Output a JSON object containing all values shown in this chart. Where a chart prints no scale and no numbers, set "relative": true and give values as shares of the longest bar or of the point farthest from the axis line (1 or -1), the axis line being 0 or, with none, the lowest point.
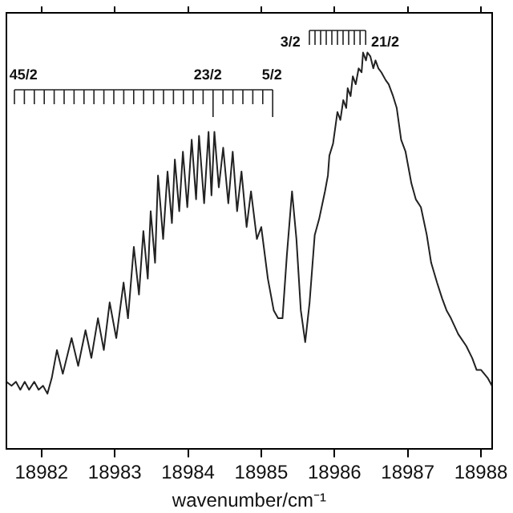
{
  "chart_data": {
    "type": "line",
    "xlabel": "wavenumber/cm⁻¹",
    "relative": true,
    "tick_labels": "x",
    "grid": false,
    "legend": false,
    "marker": "none",
    "line_style": "solid",
    "xlim": [
      18981.52,
      18988.15
    ],
    "xticks": [
      18982,
      18983,
      18984,
      18985,
      18986,
      18987,
      18988
    ],
    "annotations": [
      "45/2",
      "23/2",
      "5/2",
      "3/2",
      "21/2"
    ],
    "series": [
      {
        "color": "#222222",
        "x": [
          18981.52,
          18981.59,
          18981.65,
          18981.71,
          18981.77,
          18981.83,
          18981.9,
          18981.96,
          18982.02,
          18982.08,
          18982.14,
          18982.21,
          18982.29,
          18982.41,
          18982.5,
          18982.6,
          18982.68,
          18982.77,
          18982.85,
          18982.93,
          18983.02,
          18983.12,
          18983.18,
          18983.26,
          18983.33,
          18983.39,
          18983.45,
          18983.49,
          18983.55,
          18983.59,
          18983.66,
          18983.72,
          18983.78,
          18983.82,
          18983.88,
          18983.93,
          18983.99,
          18984.05,
          18984.11,
          18984.15,
          18984.22,
          18984.28,
          18984.32,
          18984.36,
          18984.42,
          18984.48,
          18984.55,
          18984.61,
          18984.67,
          18984.73,
          18984.8,
          18984.86,
          18984.94,
          18985.0,
          18985.09,
          18985.17,
          18985.23,
          18985.29,
          18985.35,
          18985.42,
          18985.48,
          18985.54,
          18985.6,
          18985.66,
          18985.73,
          18985.79,
          18985.87,
          18985.91,
          18985.93,
          18985.98,
          18986.04,
          18986.08,
          18986.12,
          18986.16,
          18986.18,
          18986.22,
          18986.25,
          18986.29,
          18986.33,
          18986.37,
          18986.39,
          18986.43,
          18986.45,
          18986.49,
          18986.53,
          18986.56,
          18986.6,
          18986.64,
          18986.7,
          18986.74,
          18986.8,
          18986.85,
          18986.91,
          18986.97,
          18987.01,
          18987.05,
          18987.11,
          18987.18,
          18987.26,
          18987.32,
          18987.4,
          18987.47,
          18987.53,
          18987.59,
          18987.69,
          18987.8,
          18987.88,
          18987.94,
          18988.0,
          18988.09,
          18988.15
        ],
        "values": [
          0.17,
          0.16,
          0.17,
          0.15,
          0.17,
          0.15,
          0.17,
          0.15,
          0.16,
          0.14,
          0.18,
          0.25,
          0.19,
          0.28,
          0.21,
          0.3,
          0.23,
          0.33,
          0.25,
          0.37,
          0.28,
          0.42,
          0.33,
          0.51,
          0.39,
          0.55,
          0.43,
          0.6,
          0.47,
          0.69,
          0.53,
          0.7,
          0.57,
          0.73,
          0.6,
          0.75,
          0.61,
          0.78,
          0.63,
          0.79,
          0.62,
          0.8,
          0.64,
          0.8,
          0.66,
          0.76,
          0.62,
          0.75,
          0.6,
          0.7,
          0.56,
          0.65,
          0.53,
          0.56,
          0.43,
          0.35,
          0.33,
          0.33,
          0.49,
          0.65,
          0.53,
          0.35,
          0.27,
          0.37,
          0.54,
          0.58,
          0.65,
          0.69,
          0.74,
          0.77,
          0.85,
          0.83,
          0.88,
          0.86,
          0.91,
          0.89,
          0.94,
          0.92,
          0.96,
          0.95,
          1.0,
          0.98,
          1.0,
          0.99,
          0.96,
          0.98,
          0.96,
          0.95,
          0.93,
          0.92,
          0.89,
          0.86,
          0.78,
          0.75,
          0.71,
          0.67,
          0.63,
          0.61,
          0.54,
          0.47,
          0.42,
          0.38,
          0.35,
          0.33,
          0.29,
          0.26,
          0.23,
          0.2,
          0.2,
          0.18,
          0.16
        ]
      }
    ]
  }
}
